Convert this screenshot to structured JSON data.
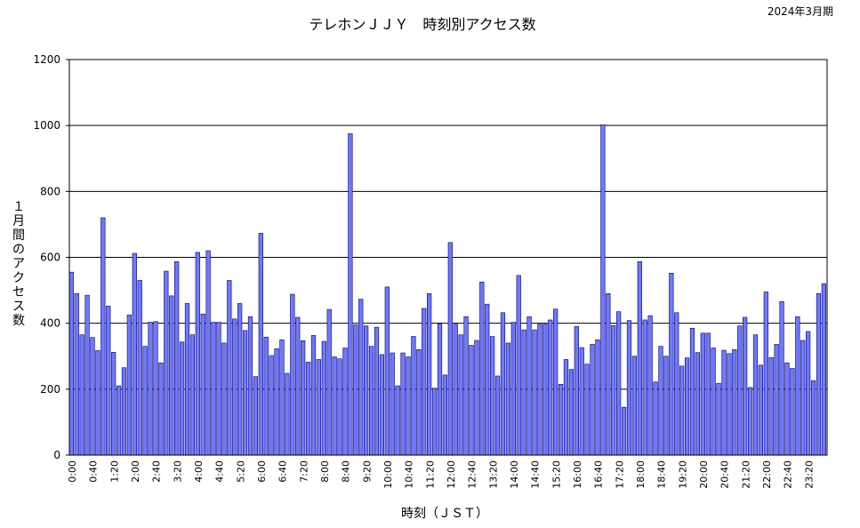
{
  "chart_data": {
    "type": "bar",
    "title": "テレホンＪＪＹ　時刻別アクセス数",
    "period": "2024年3月期",
    "xlabel": "時刻（ＪＳＴ）",
    "ylabel": "１月間のアクセス数",
    "ylim": [
      0,
      1200
    ],
    "yticks": [
      "0",
      "200",
      "400",
      "600",
      "800",
      "1000",
      "1200"
    ],
    "grid": "horizontal",
    "x_tick_labels": [
      "0:00",
      "0:40",
      "1:20",
      "2:00",
      "2:40",
      "3:20",
      "4:00",
      "4:40",
      "5:20",
      "6:00",
      "6:40",
      "7:20",
      "8:00",
      "8:40",
      "9:20",
      "10:00",
      "10:40",
      "11:20",
      "12:00",
      "12:40",
      "13:20",
      "14:00",
      "14:40",
      "15:20",
      "16:00",
      "16:40",
      "17:20",
      "18:00",
      "18:40",
      "19:20",
      "20:00",
      "20:40",
      "21:20",
      "22:00",
      "22:40",
      "23:20"
    ],
    "bar_interval_minutes": 10,
    "values": [
      555,
      490,
      365,
      485,
      357,
      317,
      720,
      452,
      312,
      210,
      265,
      425,
      612,
      530,
      330,
      403,
      405,
      280,
      558,
      483,
      587,
      343,
      460,
      365,
      615,
      428,
      620,
      403,
      403,
      340,
      530,
      413,
      460,
      378,
      420,
      238,
      673,
      358,
      302,
      323,
      350,
      248,
      488,
      418,
      347,
      282,
      363,
      290,
      345,
      442,
      298,
      292,
      325,
      975,
      395,
      473,
      392,
      330,
      388,
      305,
      510,
      310,
      210,
      310,
      298,
      360,
      320,
      445,
      490,
      203,
      398,
      243,
      645,
      397,
      365,
      420,
      333,
      348,
      525,
      458,
      360,
      240,
      432,
      340,
      403,
      545,
      380,
      420,
      380,
      397,
      397,
      410,
      443,
      215,
      290,
      260,
      390,
      326,
      276,
      336,
      350,
      1002,
      490,
      393,
      435,
      145,
      408,
      300,
      587,
      410,
      423,
      222,
      330,
      300,
      552,
      432,
      270,
      295,
      385,
      311,
      370,
      370,
      325,
      218,
      318,
      308,
      320,
      392,
      418,
      205,
      365,
      273,
      495,
      296,
      336,
      466,
      280,
      263,
      420,
      348,
      375,
      226,
      490,
      520
    ]
  }
}
